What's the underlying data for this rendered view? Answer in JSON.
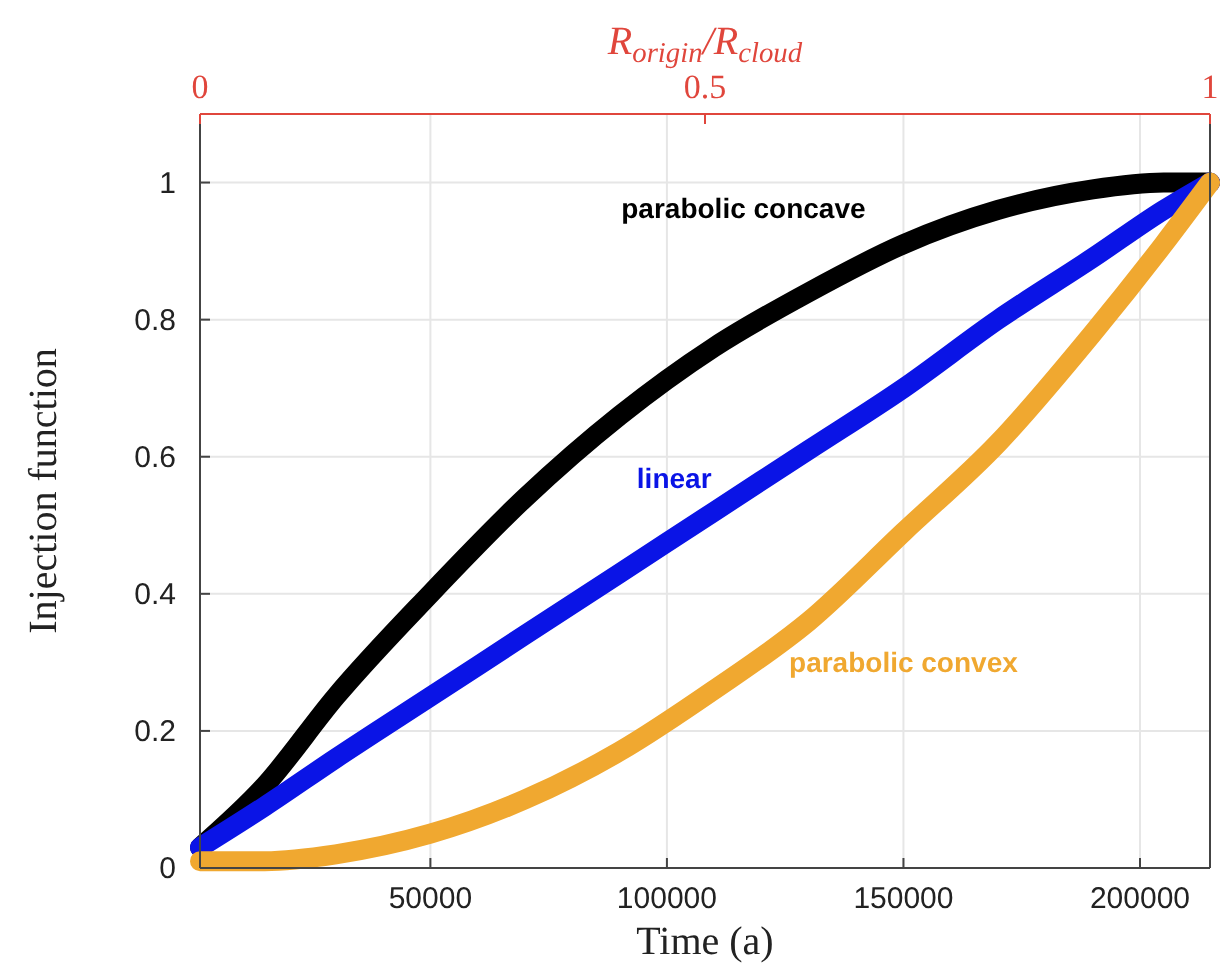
{
  "chart_data": {
    "type": "line",
    "xlabel": "Time (a)",
    "ylabel": "Injection function",
    "x2label": "R$_{origin}$/R$_{cloud}$",
    "x": [
      1300,
      15000,
      30000,
      50000,
      70000,
      90000,
      110000,
      130000,
      150000,
      170000,
      190000,
      205000,
      214800
    ],
    "xlim": [
      1300,
      214800
    ],
    "xticks": [
      50000,
      100000,
      150000,
      200000
    ],
    "ylim": [
      0,
      1.1
    ],
    "yticks": [
      0,
      0.2,
      0.4,
      0.6,
      0.8,
      1
    ],
    "x2lim": [
      0,
      1
    ],
    "x2ticks": [
      0,
      0.5,
      1
    ],
    "grid": true,
    "marker": "none",
    "line_style": "solid",
    "series": [
      {
        "name": "parabolic concave",
        "color": "#000000",
        "values": [
          0.03,
          0.12,
          0.25,
          0.4,
          0.54,
          0.66,
          0.76,
          0.84,
          0.91,
          0.96,
          0.99,
          1.0,
          1.0
        ]
      },
      {
        "name": "linear",
        "color": "#0a14e6",
        "values": [
          0.03,
          0.09,
          0.16,
          0.25,
          0.34,
          0.43,
          0.52,
          0.61,
          0.7,
          0.8,
          0.89,
          0.96,
          1.0
        ]
      },
      {
        "name": "parabolic convex",
        "color": "#f0a830",
        "values": [
          0.01,
          0.01,
          0.02,
          0.05,
          0.1,
          0.17,
          0.26,
          0.36,
          0.49,
          0.62,
          0.78,
          0.91,
          1.0
        ]
      }
    ]
  }
}
